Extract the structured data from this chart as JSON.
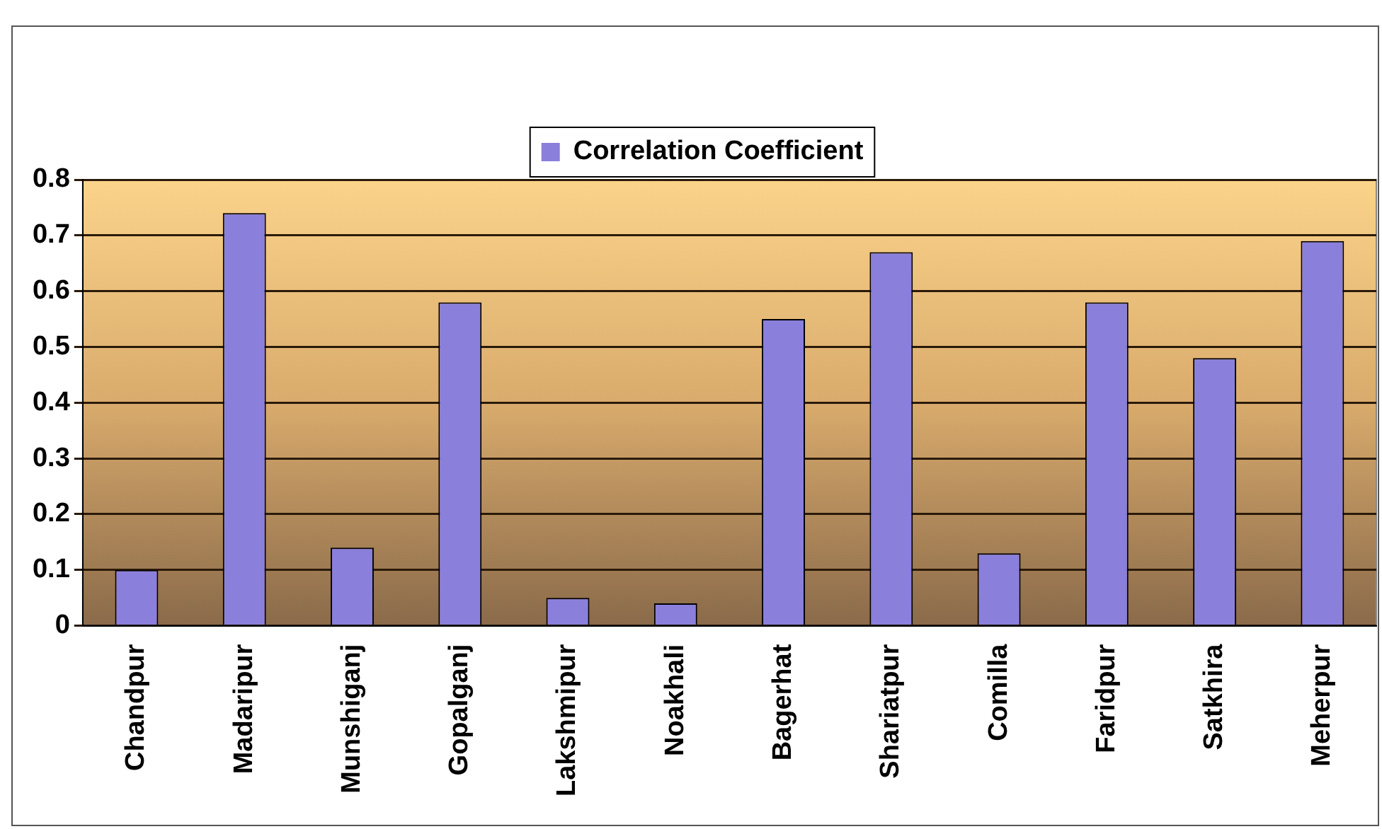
{
  "chart_data": {
    "type": "bar",
    "categories": [
      "Chandpur",
      "Madaripur",
      "Munshiganj",
      "Gopalganj",
      "Lakshmipur",
      "Noakhali",
      "Bagerhat",
      "Shariatpur",
      "Comilla",
      "Faridpur",
      "Satkhira",
      "Meherpur"
    ],
    "series": [
      {
        "name": "Correlation Coefficient",
        "color": "#8b7fdc",
        "values": [
          0.1,
          0.74,
          0.14,
          0.58,
          0.05,
          0.04,
          0.55,
          0.67,
          0.13,
          0.58,
          0.48,
          0.69
        ]
      }
    ],
    "ylim": [
      0,
      0.8
    ],
    "yticks": [
      0,
      0.1,
      0.2,
      0.3,
      0.4,
      0.5,
      0.6,
      0.7,
      0.8
    ],
    "grid": "y",
    "legend": "top"
  }
}
